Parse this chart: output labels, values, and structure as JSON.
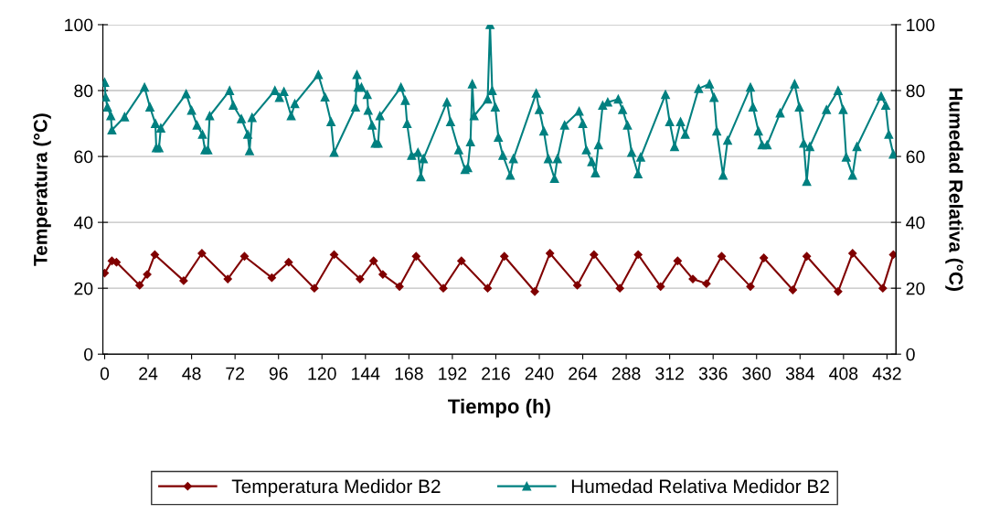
{
  "chart_data": {
    "type": "line",
    "xlabel": "Tiempo (h)",
    "ylabel": "Temperatura (°C)",
    "y2label": "Humedad Relativa (°C)",
    "xlim": [
      -1,
      437
    ],
    "xticks": [
      0,
      24,
      48,
      72,
      96,
      120,
      144,
      168,
      192,
      216,
      240,
      264,
      288,
      312,
      336,
      360,
      384,
      408,
      432
    ],
    "ylim": [
      0,
      100
    ],
    "yticks": [
      0,
      20,
      40,
      60,
      80,
      100
    ],
    "y2lim": [
      0,
      100
    ],
    "y2ticks": [
      0,
      20,
      40,
      60,
      80,
      100
    ],
    "grid": "y",
    "legend": "bottom",
    "series": [
      {
        "name": "Temperatura Medidor B2",
        "color": "#800000",
        "marker": "diamond",
        "x": [
          0,
          4,
          6.5,
          19.3,
          23.5,
          27.7,
          43.6,
          53.7,
          68,
          77.2,
          92.3,
          101.6,
          115.8,
          126.7,
          141,
          148.5,
          153.6,
          162.8,
          172,
          187,
          197,
          211.5,
          220.7,
          237.5,
          245.9,
          261,
          270.2,
          284.5,
          294.6,
          307,
          316.4,
          324.8,
          332.3,
          340.7,
          356.6,
          364,
          380,
          387.7,
          405,
          413,
          429.7,
          435.5
        ],
        "values": [
          24.6,
          28.3,
          27.9,
          20.9,
          24.2,
          30.2,
          22.3,
          30.6,
          22.8,
          29.7,
          23.2,
          27.9,
          20,
          30.2,
          22.8,
          28.3,
          24.2,
          20.5,
          29.7,
          20,
          28.3,
          20,
          29.7,
          19,
          30.6,
          20.9,
          30.2,
          20,
          30.2,
          20.5,
          28.3,
          22.8,
          21.4,
          29.7,
          20.5,
          29.2,
          19.5,
          29.7,
          19,
          30.6,
          20,
          30.2
        ]
      },
      {
        "name": "Humedad Relativa Medidor B2",
        "color": "#008080",
        "marker": "triangle",
        "axis": "y2",
        "x": [
          0,
          0.5,
          1.5,
          3.4,
          4,
          11,
          22,
          25,
          28,
          28.5,
          30,
          31,
          45,
          48,
          51,
          54,
          55.4,
          57,
          58,
          69,
          71,
          75.5,
          79,
          80,
          81.4,
          94,
          96.5,
          99,
          103,
          105,
          118,
          121.7,
          125,
          126.7,
          138.5,
          139.3,
          140,
          141.8,
          145,
          145.5,
          147.7,
          149.4,
          151,
          152,
          163.6,
          166,
          167,
          169.5,
          173,
          174.6,
          176,
          189,
          191,
          195.5,
          199,
          200.5,
          202,
          203,
          204,
          211.5,
          212.8,
          214,
          215.7,
          217.4,
          219.9,
          224,
          225.7,
          238.3,
          240,
          242.5,
          245,
          248.4,
          250,
          254,
          262,
          264,
          266,
          269,
          271,
          272.7,
          275,
          277.8,
          283.6,
          286,
          288.7,
          291,
          294.5,
          296,
          309.7,
          312,
          314.7,
          318,
          320.6,
          328,
          334,
          336.5,
          338,
          341.5,
          344,
          356.6,
          358,
          361,
          363,
          365.8,
          373,
          381,
          383.6,
          386,
          387.7,
          389.4,
          398.6,
          405,
          407.8,
          409.5,
          413,
          415.4,
          428.8,
          431.3,
          433,
          435.5
        ],
        "values": [
          82.5,
          78,
          75,
          72.3,
          68,
          72,
          81,
          75,
          70,
          62.6,
          62.6,
          68.6,
          79,
          74,
          69.5,
          66.7,
          62,
          62,
          72.3,
          80,
          75.5,
          71.4,
          66.7,
          61.7,
          71.8,
          80,
          77.9,
          79.7,
          72.3,
          76,
          84.8,
          78,
          70.5,
          61.2,
          75,
          84.8,
          81,
          81,
          78.8,
          74,
          69.5,
          64,
          64,
          72.3,
          81,
          77,
          70,
          60.3,
          61.2,
          53.8,
          59.3,
          76.5,
          70.5,
          62,
          56,
          56.6,
          64.4,
          82,
          72.3,
          77.4,
          100,
          80,
          75,
          65.8,
          60.3,
          54.3,
          59.3,
          79.2,
          74.2,
          67.7,
          59.3,
          53.3,
          59.3,
          69.5,
          73.7,
          70,
          62,
          58.4,
          55,
          63.5,
          75.5,
          76.5,
          77.4,
          74.2,
          69.5,
          61.2,
          54.7,
          59.8,
          78.8,
          70.5,
          63,
          70.5,
          66.7,
          80.6,
          82,
          77.9,
          67.7,
          54.3,
          64.9,
          81,
          75,
          67.7,
          63.5,
          63.5,
          73.2,
          82,
          75,
          64,
          52.4,
          63,
          74.2,
          80,
          74.2,
          59.8,
          54.3,
          63,
          78.3,
          75.5,
          66.7,
          60.7
        ]
      }
    ]
  }
}
